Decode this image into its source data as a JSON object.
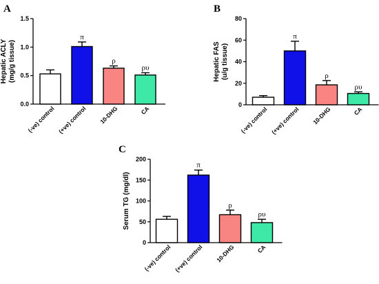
{
  "chart_data": [
    {
      "type": "bar",
      "panel": "A",
      "ylabel_lines": [
        "Hepatic ACLY",
        "(mg/g tissue)"
      ],
      "xlabel": "",
      "ylim": [
        0,
        1.5
      ],
      "yticks": [
        "0.0",
        "0.5",
        "1.0",
        "1.5"
      ],
      "categories": [
        "(-ve) control",
        "(+ve) control",
        "10-DHG",
        "CA"
      ],
      "values": [
        0.53,
        1.01,
        0.63,
        0.51
      ],
      "errors": [
        0.07,
        0.08,
        0.04,
        0.04
      ],
      "significance": [
        "",
        "π",
        "ρ",
        "ρυ"
      ],
      "colors": [
        "#ffffff",
        "#1010e8",
        "#f98583",
        "#3ee8a6"
      ]
    },
    {
      "type": "bar",
      "panel": "B",
      "ylabel_lines": [
        "Hepatic FAS",
        "(u/g tissue)"
      ],
      "xlabel": "",
      "ylim": [
        0,
        80
      ],
      "yticks": [
        "0",
        "20",
        "40",
        "60",
        "80"
      ],
      "categories": [
        "(-ve) control",
        "(+ve) control",
        "10-DHG",
        "CA"
      ],
      "values": [
        7,
        50,
        18.5,
        10.5
      ],
      "errors": [
        1.5,
        9,
        4,
        1.5
      ],
      "significance": [
        "",
        "π",
        "ρ",
        "ρυ"
      ],
      "colors": [
        "#ffffff",
        "#1010e8",
        "#f98583",
        "#3ee8a6"
      ]
    },
    {
      "type": "bar",
      "panel": "C",
      "ylabel_lines": [
        "Serum TG (mg/dl)"
      ],
      "xlabel": "",
      "ylim": [
        0,
        200
      ],
      "yticks": [
        "0",
        "50",
        "100",
        "150",
        "200"
      ],
      "categories": [
        "(-ve) control",
        "(+ve) control",
        "10-DHG",
        "CA"
      ],
      "values": [
        56,
        162,
        67,
        48
      ],
      "errors": [
        7,
        12,
        11,
        8
      ],
      "significance": [
        "",
        "π",
        "ρ",
        "ρυ"
      ],
      "colors": [
        "#ffffff",
        "#1010e8",
        "#f98583",
        "#3ee8a6"
      ]
    }
  ]
}
